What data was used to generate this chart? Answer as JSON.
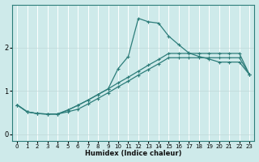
{
  "title": "",
  "xlabel": "Humidex (Indice chaleur)",
  "ylabel": "",
  "bg_color": "#ceeaea",
  "line_color": "#2d7d7a",
  "grid_color": "#b8d8d8",
  "xlim": [
    -0.5,
    23.5
  ],
  "ylim": [
    -0.15,
    3.0
  ],
  "xticks": [
    0,
    1,
    2,
    3,
    4,
    5,
    6,
    7,
    8,
    9,
    10,
    11,
    12,
    13,
    14,
    15,
    16,
    17,
    18,
    19,
    20,
    21,
    22,
    23
  ],
  "yticks": [
    0,
    1,
    2
  ],
  "line1_x": [
    0,
    1,
    2,
    3,
    4,
    5,
    6,
    7,
    8,
    9,
    10,
    11,
    12,
    13,
    14,
    15,
    16,
    17,
    18,
    19,
    20,
    21,
    22,
    23
  ],
  "line1_y": [
    0.68,
    0.52,
    0.48,
    0.47,
    0.47,
    0.56,
    0.67,
    0.79,
    0.92,
    1.05,
    1.19,
    1.32,
    1.46,
    1.6,
    1.73,
    1.87,
    1.87,
    1.87,
    1.87,
    1.87,
    1.87,
    1.87,
    1.87,
    1.38
  ],
  "line2_x": [
    0,
    1,
    2,
    3,
    4,
    5,
    6,
    7,
    8,
    9,
    10,
    11,
    12,
    13,
    14,
    15,
    16,
    17,
    18,
    19,
    20,
    21,
    22,
    23
  ],
  "line2_y": [
    0.68,
    0.52,
    0.48,
    0.47,
    0.47,
    0.56,
    0.67,
    0.79,
    0.92,
    1.05,
    1.52,
    1.8,
    2.68,
    2.6,
    2.57,
    2.27,
    2.07,
    1.88,
    1.8,
    1.74,
    1.67,
    1.67,
    1.67,
    1.38
  ],
  "line3_x": [
    0,
    1,
    2,
    3,
    4,
    5,
    6,
    7,
    8,
    9,
    10,
    11,
    12,
    13,
    14,
    15,
    16,
    17,
    18,
    19,
    20,
    21,
    22,
    23
  ],
  "line3_y": [
    0.68,
    0.52,
    0.48,
    0.47,
    0.47,
    0.52,
    0.58,
    0.7,
    0.83,
    0.96,
    1.1,
    1.23,
    1.37,
    1.5,
    1.63,
    1.77,
    1.77,
    1.77,
    1.77,
    1.77,
    1.77,
    1.77,
    1.77,
    1.38
  ]
}
